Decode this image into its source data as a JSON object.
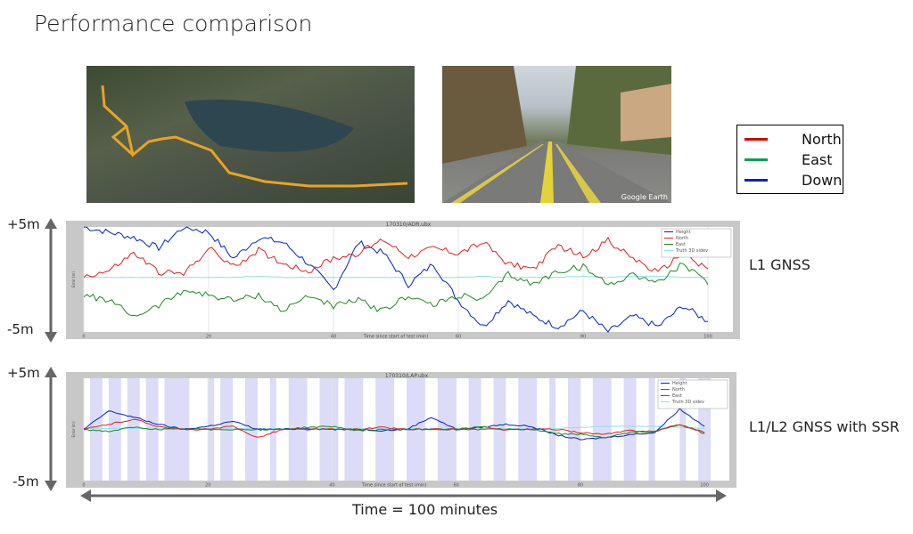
{
  "slide": {
    "title": "Performance comparison",
    "map_photo": {
      "route_color": "#e8a423"
    },
    "street_photo": {
      "watermark": "Google Earth"
    },
    "legend": [
      {
        "label": "North",
        "color": "#d00000"
      },
      {
        "label": "East",
        "color": "#00a050"
      },
      {
        "label": "Down",
        "color": "#0022cc"
      }
    ],
    "plot1_label": "L1 GNSS",
    "plot2_label": "L1/L2 GNSS with SSR",
    "plus_label": "+5m",
    "minus_label": "-5m",
    "time_label": "Time = 100 minutes"
  },
  "chart_data": [
    {
      "type": "line",
      "title": "170310/ADR.ubx",
      "xlabel": "Time since start of test (min)",
      "ylabel": "Error (m)",
      "xlim": [
        0,
        104
      ],
      "ylim": [
        -5,
        5
      ],
      "x_ticks": [
        0,
        20,
        40,
        60,
        80,
        100
      ],
      "grid": true,
      "legend_position": "top-right",
      "x": [
        0,
        4,
        8,
        12,
        16,
        20,
        24,
        28,
        32,
        36,
        40,
        44,
        48,
        52,
        56,
        60,
        64,
        68,
        72,
        76,
        80,
        84,
        88,
        92,
        96,
        100
      ],
      "series": [
        {
          "name": "Height",
          "color": "#0022cc",
          "values": [
            5,
            4.5,
            4,
            3,
            5,
            4.5,
            2,
            4,
            3.5,
            1.5,
            -1,
            3.5,
            2.5,
            -0.5,
            1.5,
            -2,
            -4.5,
            -2,
            -3.5,
            -4.5,
            -3,
            -5,
            -3.5,
            -4.5,
            -2.5,
            -4
          ]
        },
        {
          "name": "North",
          "color": "#e02020",
          "values": [
            0.3,
            0.8,
            2.5,
            0.7,
            0.5,
            3,
            1.2,
            2.8,
            1.5,
            0.8,
            2,
            2.5,
            3.8,
            2.2,
            3,
            2.5,
            3.5,
            1.5,
            1,
            3.2,
            2.2,
            3.7,
            2,
            0.6,
            2.5,
            1
          ]
        },
        {
          "name": "East",
          "color": "#208a20",
          "values": [
            -1.5,
            -2,
            -3.5,
            -2.5,
            -1,
            -1.5,
            -2,
            -1.5,
            -3,
            -1.5,
            -2.5,
            -2,
            -3,
            -1.5,
            -2.5,
            -1.5,
            -2,
            0.5,
            -0.5,
            0.8,
            1.2,
            -0.5,
            0.5,
            -0.3,
            1.5,
            -0.5
          ]
        },
        {
          "name": "Truth 3D sidev",
          "color": "#8fe0e8",
          "values": [
            0.2,
            0.2,
            0.2,
            0.2,
            0.2,
            0.2,
            0.2,
            0.3,
            0.2,
            0.2,
            0.2,
            0.2,
            0.2,
            0.2,
            0.2,
            0.2,
            0.3,
            0.2,
            0.2,
            0.2,
            0.3,
            0.2,
            0.3,
            0.3,
            0.2,
            0.2
          ]
        }
      ]
    },
    {
      "type": "line",
      "title": "170310/LAP.ubx",
      "xlabel": "Time since start of test (min)",
      "ylabel": "Error (m)",
      "xlim": [
        0,
        104
      ],
      "ylim": [
        -5,
        5
      ],
      "x_ticks": [
        0,
        20,
        40,
        60,
        80,
        100
      ],
      "grid": true,
      "legend_position": "top-right",
      "x": [
        0,
        4,
        8,
        12,
        16,
        20,
        24,
        28,
        32,
        36,
        40,
        44,
        48,
        52,
        56,
        60,
        64,
        68,
        72,
        76,
        80,
        84,
        88,
        92,
        96,
        100
      ],
      "shaded_intervals": [
        [
          1,
          3
        ],
        [
          4,
          6
        ],
        [
          7,
          9
        ],
        [
          10,
          12
        ],
        [
          13,
          17
        ],
        [
          20,
          21
        ],
        [
          22,
          24
        ],
        [
          26,
          28
        ],
        [
          30,
          31
        ],
        [
          33,
          36
        ],
        [
          38,
          41
        ],
        [
          42,
          45
        ],
        [
          47,
          50
        ],
        [
          52,
          55
        ],
        [
          57,
          60
        ],
        [
          62,
          64
        ],
        [
          66,
          68
        ],
        [
          70,
          73
        ],
        [
          75,
          76
        ],
        [
          78,
          80
        ],
        [
          82,
          85
        ],
        [
          87,
          89
        ],
        [
          91,
          92
        ],
        [
          96,
          97
        ],
        [
          99,
          101
        ]
      ],
      "series": [
        {
          "name": "Height",
          "color": "#0022cc",
          "values": [
            0,
            1.8,
            1.2,
            0.5,
            0,
            0.3,
            0.8,
            0,
            0,
            0.1,
            0,
            0,
            -0.1,
            0,
            1.2,
            0,
            0.2,
            0.5,
            0.3,
            -0.5,
            -1.0,
            -0.8,
            -0.5,
            -0.3,
            2,
            0.3
          ]
        },
        {
          "name": "North",
          "color": "#e02020",
          "values": [
            0,
            0.5,
            1,
            0.3,
            0,
            0,
            0.3,
            -0.8,
            0,
            0,
            0,
            0,
            0.2,
            0,
            0,
            0,
            0,
            0,
            0,
            0,
            -0.3,
            -0.5,
            -0.1,
            -0.2,
            0.5,
            -0.3
          ]
        },
        {
          "name": "East",
          "color": "#208a20",
          "values": [
            0,
            -0.2,
            0.2,
            0,
            0,
            0,
            0,
            0,
            0,
            0.2,
            0.3,
            -0.1,
            0,
            0,
            0,
            0,
            0.3,
            0,
            0,
            -0.4,
            -0.5,
            -0.8,
            -0.3,
            -0.2,
            0.5,
            -0.4
          ]
        },
        {
          "name": "Truth 3D sidev",
          "color": "#8fe0e8",
          "values": [
            0.1,
            0.1,
            0.1,
            0.1,
            0.1,
            0.1,
            0.1,
            0.1,
            0.1,
            0.1,
            0.1,
            0.1,
            0.1,
            0.1,
            0.1,
            0.1,
            0.1,
            0.1,
            0.1,
            0.1,
            0.2,
            0.3,
            0.3,
            0.3,
            0.2,
            0.1
          ]
        }
      ]
    }
  ]
}
